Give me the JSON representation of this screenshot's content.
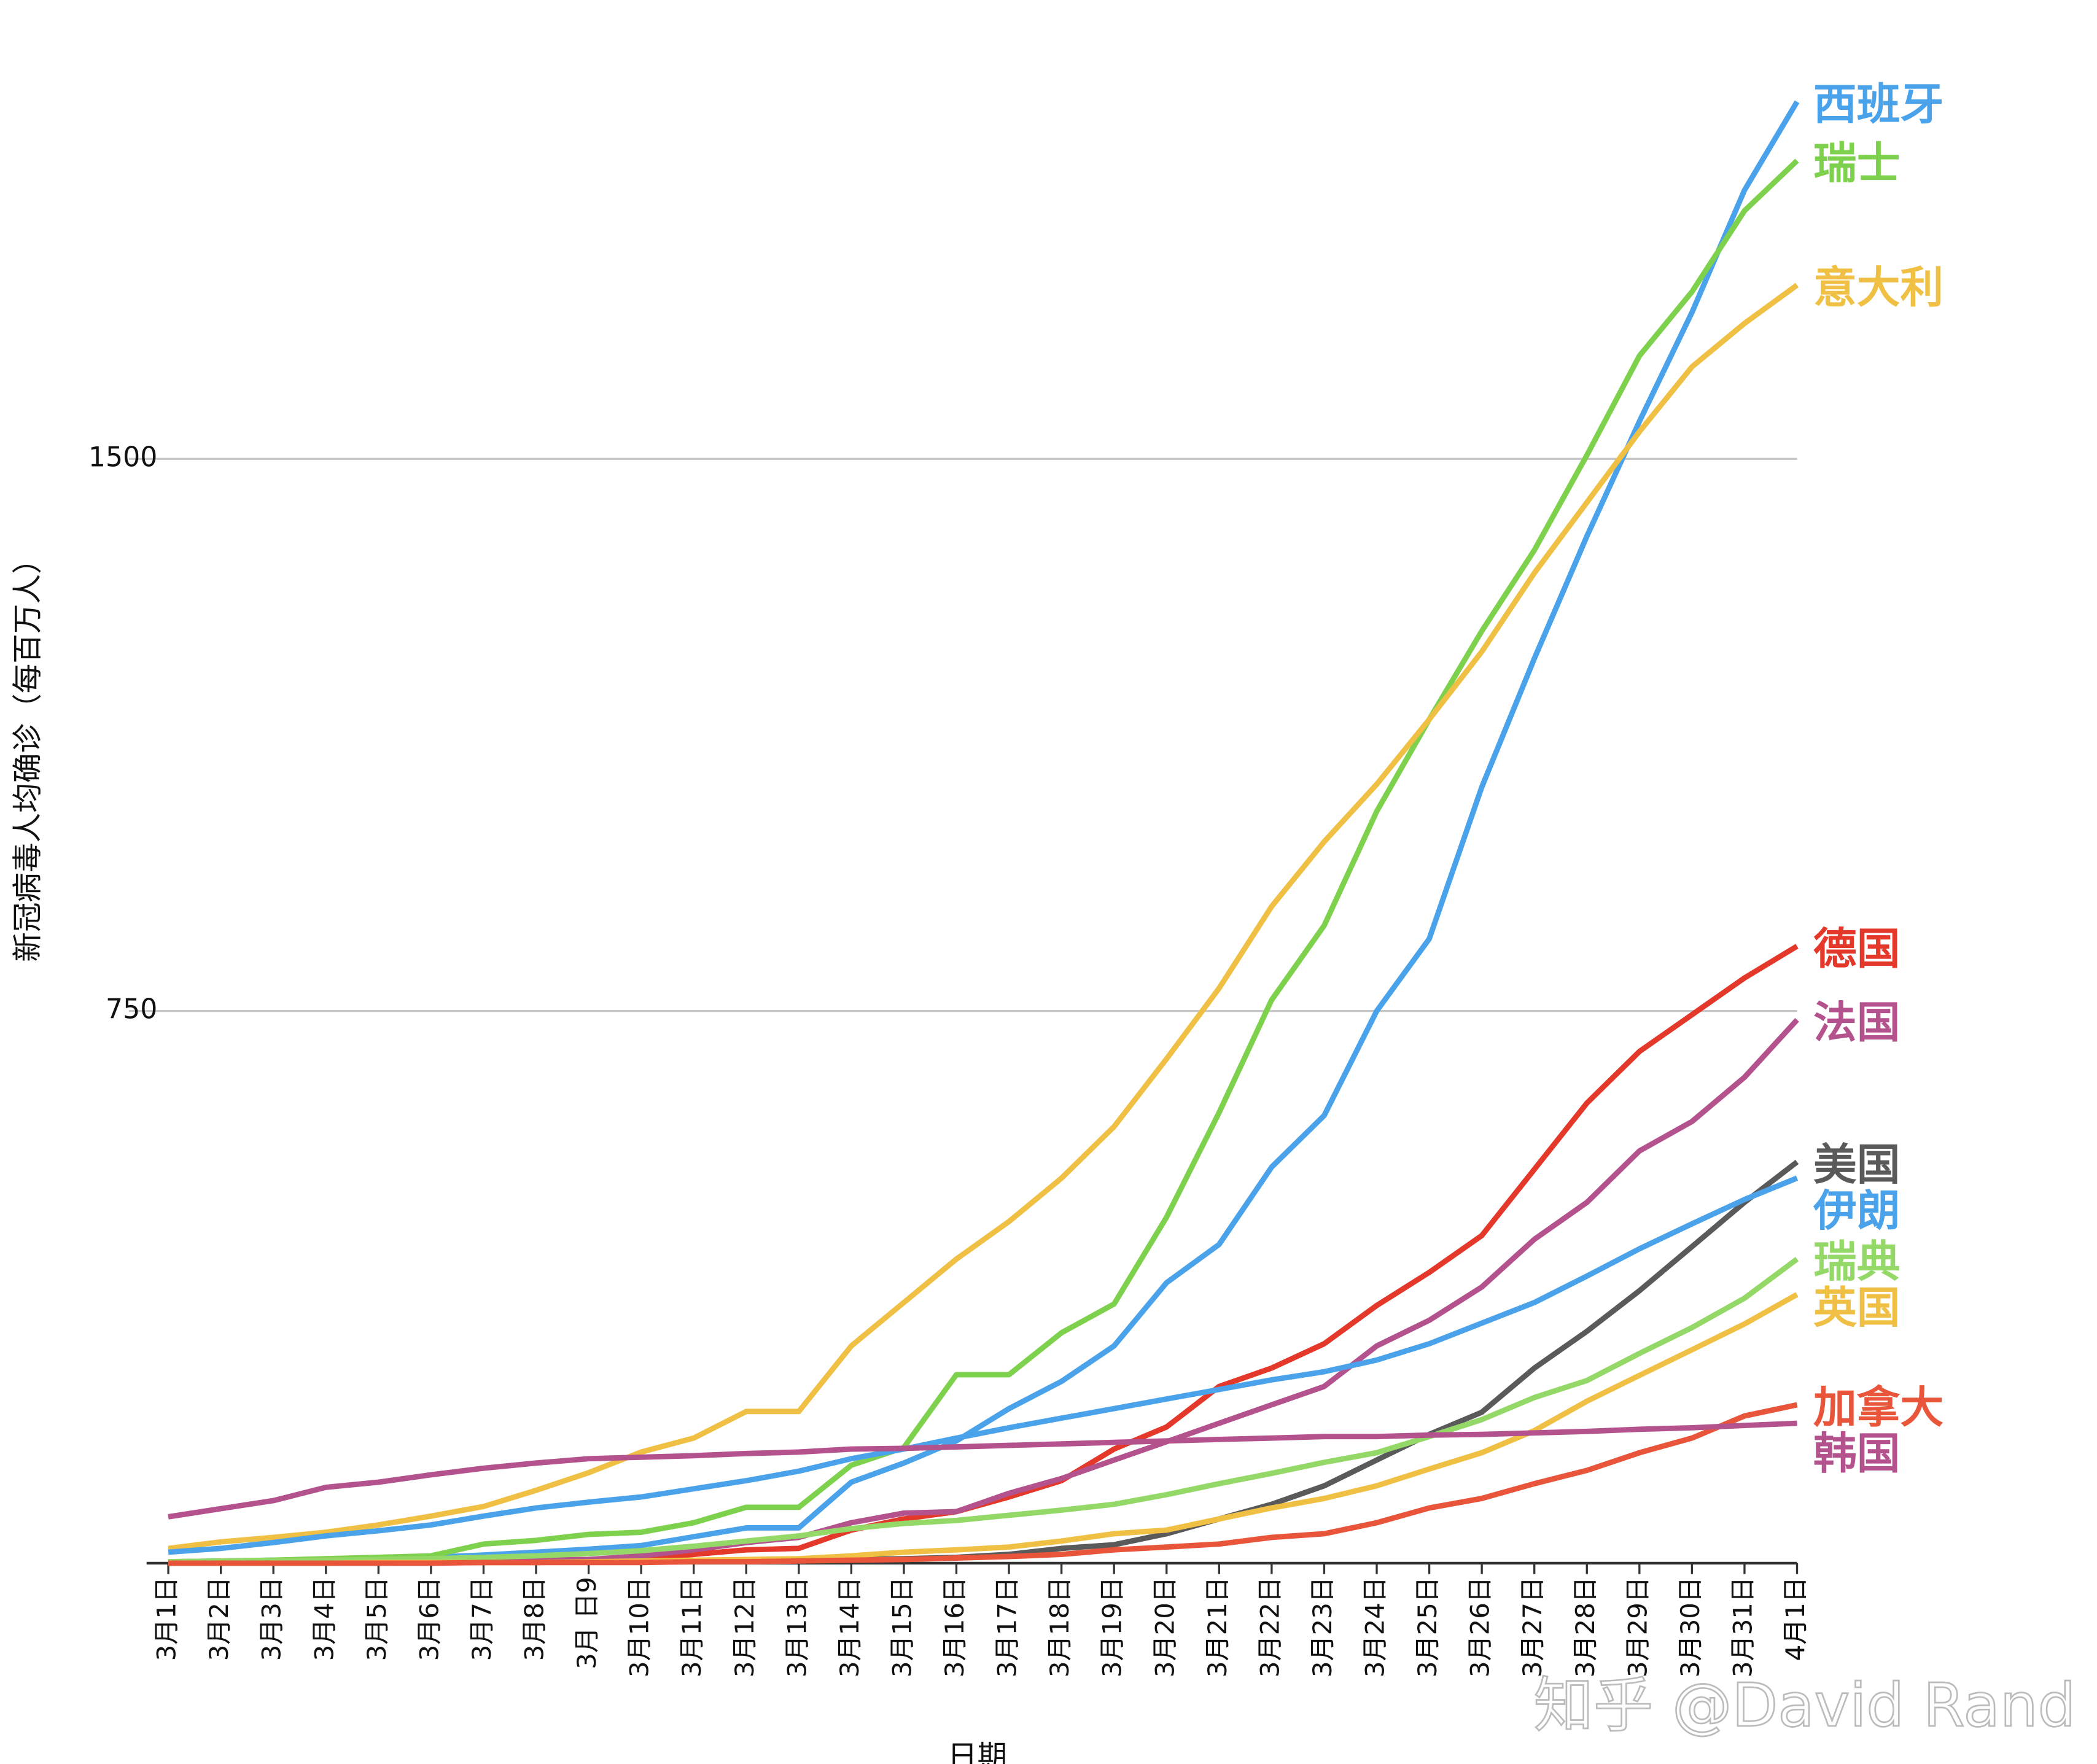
{
  "chart_data": {
    "type": "line",
    "y_label": "新冠病毒人均确诊（每百万人）",
    "x_label": "日期",
    "watermark": "知乎 @David Rand",
    "categories": [
      "3月1日",
      "3月2日",
      "3月3日",
      "3月4日",
      "3月5日",
      "3月6日",
      "3月7日",
      "3月8日",
      "3月 日9",
      "3月10日",
      "3月11日",
      "3月12日",
      "3月13日",
      "3月14日",
      "3月15日",
      "3月16日",
      "3月17日",
      "3月18日",
      "3月19日",
      "3月20日",
      "3月21日",
      "3月22日",
      "3月23日",
      "3月24日",
      "3月25日",
      "3月26日",
      "3月27日",
      "3月28日",
      "3月29日",
      "3月30日",
      "3月31日",
      "4月1日"
    ],
    "ylim": [
      0,
      1985
    ],
    "yticks": [
      750,
      1500
    ],
    "grid": true,
    "series": [
      {
        "name": "西班牙",
        "color": "#4aa3ea",
        "values": [
          2,
          3,
          4,
          5,
          6,
          8,
          11,
          15,
          19,
          24,
          36,
          48,
          48,
          110,
          136,
          166,
          210,
          247,
          295,
          381,
          433,
          538,
          608,
          750,
          848,
          1054,
          1229,
          1395,
          1551,
          1699,
          1865,
          1985
        ]
      },
      {
        "name": "瑞士",
        "color": "#7ed14c",
        "values": [
          2,
          3,
          4,
          6,
          8,
          10,
          26,
          31,
          39,
          42,
          55,
          76,
          76,
          133,
          157,
          256,
          256,
          313,
          352,
          470,
          612,
          765,
          866,
          1021,
          1146,
          1266,
          1376,
          1505,
          1640,
          1727,
          1837,
          1905
        ]
      },
      {
        "name": "意大利",
        "color": "#efc043",
        "values": [
          20,
          29,
          35,
          42,
          52,
          64,
          77,
          99,
          123,
          151,
          170,
          206,
          206,
          295,
          354,
          413,
          464,
          523,
          593,
          685,
          781,
          892,
          980,
          1058,
          1146,
          1238,
          1345,
          1441,
          1537,
          1625,
          1684,
          1736
        ]
      },
      {
        "name": "德国",
        "color": "#e4392a",
        "values": [
          0,
          0,
          0,
          1,
          1,
          1,
          2,
          2,
          3,
          5,
          12,
          18,
          20,
          45,
          60,
          70,
          90,
          112,
          155,
          185,
          240,
          265,
          298,
          350,
          395,
          445,
          535,
          625,
          695,
          745,
          795,
          838
        ]
      },
      {
        "name": "法国",
        "color": "#b4528e",
        "values": [
          1,
          1,
          1,
          2,
          2,
          2,
          3,
          4,
          5,
          10,
          18,
          28,
          35,
          55,
          68,
          70,
          95,
          115,
          140,
          165,
          190,
          215,
          240,
          295,
          330,
          375,
          440,
          490,
          560,
          600,
          660,
          738
        ]
      },
      {
        "name": "美国",
        "color": "#5a5a5a",
        "values": [
          0,
          0,
          0,
          0,
          0,
          1,
          1,
          1,
          2,
          2,
          3,
          3,
          4,
          5,
          6,
          8,
          12,
          20,
          25,
          40,
          60,
          80,
          105,
          140,
          175,
          205,
          265,
          315,
          370,
          430,
          490,
          545
        ]
      },
      {
        "name": "伊朗",
        "color": "#4aa3ea",
        "values": [
          15,
          20,
          28,
          37,
          44,
          52,
          64,
          75,
          83,
          90,
          101,
          112,
          125,
          142,
          155,
          170,
          184,
          197,
          210,
          223,
          236,
          249,
          260,
          276,
          298,
          326,
          354,
          390,
          427,
          461,
          494,
          523
        ]
      },
      {
        "name": "瑞典",
        "color": "#94d968",
        "values": [
          2,
          3,
          3,
          4,
          5,
          6,
          8,
          10,
          13,
          17,
          23,
          30,
          37,
          47,
          54,
          58,
          65,
          72,
          80,
          93,
          108,
          122,
          137,
          150,
          172,
          195,
          225,
          248,
          285,
          320,
          360,
          413
        ]
      },
      {
        "name": "英国",
        "color": "#efc043",
        "values": [
          0,
          0,
          0,
          0,
          1,
          1,
          1,
          1,
          2,
          3,
          4,
          5,
          6,
          10,
          15,
          18,
          22,
          30,
          40,
          45,
          60,
          75,
          88,
          105,
          128,
          150,
          180,
          220,
          255,
          290,
          325,
          365
        ]
      },
      {
        "name": "加拿大",
        "color": "#e8553a",
        "values": [
          0,
          0,
          0,
          0,
          0,
          0,
          1,
          1,
          1,
          1,
          2,
          2,
          3,
          4,
          5,
          7,
          9,
          12,
          18,
          22,
          26,
          35,
          40,
          55,
          75,
          88,
          108,
          126,
          150,
          170,
          200,
          215
        ]
      },
      {
        "name": "韩国",
        "color": "#b4528e",
        "values": [
          63,
          74,
          85,
          103,
          110,
          120,
          129,
          136,
          142,
          144,
          146,
          149,
          151,
          155,
          156,
          158,
          160,
          162,
          164,
          166,
          168,
          170,
          172,
          172,
          174,
          175,
          177,
          179,
          182,
          184,
          187,
          190
        ]
      }
    ]
  }
}
